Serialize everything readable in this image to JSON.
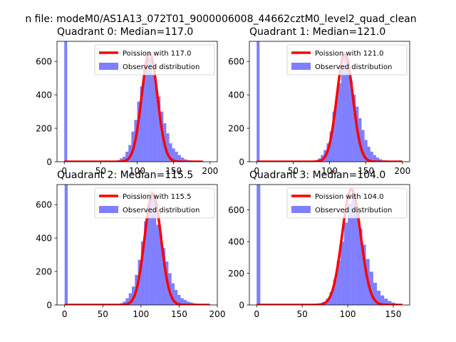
{
  "figure": {
    "suptitle": "n file: modeM0/AS1A13_072T01_9000006008_44662cztM0_level2_quad_clean"
  },
  "colors": {
    "hist": "#0000ff",
    "hist_alpha": 0.5,
    "poisson": "#ff0000",
    "axes": "#000000"
  },
  "chart_data": [
    {
      "type": "bar",
      "title": "Quadrant 0: Median=117.0",
      "xlim": [
        -10,
        210
      ],
      "ylim": [
        0,
        720
      ],
      "xticks": [
        0,
        50,
        100,
        150,
        200
      ],
      "yticks": [
        0,
        200,
        400,
        600
      ],
      "median": 117.0,
      "legend": {
        "placement": "upper right",
        "entries": [
          "Poission with 117.0",
          "Observed distribution"
        ]
      },
      "series": [
        {
          "name": "Observed distribution",
          "kind": "histogram",
          "bin_width": 4,
          "bin_starts": [
            0,
            72,
            76,
            80,
            84,
            88,
            92,
            96,
            100,
            104,
            108,
            112,
            116,
            120,
            124,
            128,
            132,
            136,
            140,
            144,
            148,
            152,
            156,
            160,
            164,
            168,
            172,
            176,
            180,
            184,
            188
          ],
          "counts": [
            720,
            10,
            20,
            30,
            60,
            100,
            180,
            250,
            360,
            450,
            580,
            640,
            620,
            520,
            460,
            390,
            300,
            230,
            170,
            110,
            80,
            60,
            40,
            25,
            15,
            10,
            8,
            6,
            5,
            4,
            3
          ]
        },
        {
          "name": "Poission with 117.0",
          "kind": "line",
          "mean": 117.0,
          "peak": 650,
          "x_range": [
            0,
            190
          ]
        }
      ]
    },
    {
      "type": "bar",
      "title": "Quadrant 1: Median=121.0",
      "xlim": [
        -10,
        210
      ],
      "ylim": [
        0,
        720
      ],
      "xticks": [
        0,
        50,
        100,
        150,
        200
      ],
      "yticks": [
        0,
        200,
        400,
        600
      ],
      "median": 121.0,
      "legend": {
        "placement": "upper right",
        "entries": [
          "Poission with 121.0",
          "Observed distribution"
        ]
      },
      "series": [
        {
          "name": "Observed distribution",
          "kind": "histogram",
          "bin_width": 4,
          "bin_starts": [
            0,
            80,
            84,
            88,
            92,
            96,
            100,
            104,
            108,
            112,
            116,
            120,
            124,
            128,
            132,
            136,
            140,
            144,
            148,
            152,
            156,
            160,
            164,
            168,
            172,
            176,
            180,
            184,
            188,
            192,
            196
          ],
          "counts": [
            720,
            10,
            20,
            40,
            70,
            110,
            180,
            300,
            390,
            470,
            570,
            650,
            610,
            480,
            400,
            330,
            260,
            190,
            130,
            90,
            60,
            40,
            25,
            15,
            10,
            8,
            6,
            5,
            4,
            3,
            2
          ]
        },
        {
          "name": "Poission with 121.0",
          "kind": "line",
          "mean": 121.0,
          "peak": 645,
          "x_range": [
            0,
            200
          ]
        }
      ]
    },
    {
      "type": "bar",
      "title": "Quadrant 2: Median=115.5",
      "xlim": [
        -10,
        200
      ],
      "ylim": [
        0,
        720
      ],
      "xticks": [
        0,
        50,
        100,
        150,
        200
      ],
      "yticks": [
        0,
        200,
        400,
        600
      ],
      "median": 115.5,
      "legend": {
        "placement": "upper right",
        "entries": [
          "Poission with 115.5",
          "Observed distribution"
        ]
      },
      "series": [
        {
          "name": "Observed distribution",
          "kind": "histogram",
          "bin_width": 4,
          "bin_starts": [
            0,
            72,
            76,
            80,
            84,
            88,
            92,
            96,
            100,
            104,
            108,
            112,
            116,
            120,
            124,
            128,
            132,
            136,
            140,
            144,
            148,
            152,
            156,
            160,
            164,
            168,
            172,
            176,
            180,
            184,
            188
          ],
          "counts": [
            720,
            10,
            20,
            40,
            70,
            110,
            180,
            270,
            380,
            500,
            600,
            680,
            650,
            480,
            420,
            340,
            260,
            190,
            130,
            90,
            60,
            40,
            30,
            20,
            15,
            10,
            8,
            6,
            5,
            4,
            3
          ]
        },
        {
          "name": "Poission with 115.5",
          "kind": "line",
          "mean": 115.5,
          "peak": 665,
          "x_range": [
            0,
            190
          ]
        }
      ]
    },
    {
      "type": "bar",
      "title": "Quadrant 3: Median=104.0",
      "xlim": [
        -8,
        168
      ],
      "ylim": [
        0,
        760
      ],
      "xticks": [
        0,
        50,
        100,
        150
      ],
      "yticks": [
        0,
        200,
        400,
        600
      ],
      "median": 104.0,
      "legend": {
        "placement": "upper right",
        "entries": [
          "Poission with 104.0",
          "Observed distribution"
        ]
      },
      "series": [
        {
          "name": "Observed distribution",
          "kind": "histogram",
          "bin_width": 4,
          "bin_starts": [
            0,
            64,
            68,
            72,
            76,
            80,
            84,
            88,
            92,
            96,
            100,
            104,
            108,
            112,
            116,
            120,
            124,
            128,
            132,
            136,
            140,
            144,
            148,
            152,
            156
          ],
          "counts": [
            760,
            5,
            10,
            20,
            40,
            80,
            160,
            280,
            400,
            520,
            640,
            700,
            600,
            480,
            380,
            290,
            210,
            140,
            90,
            60,
            40,
            25,
            15,
            8,
            5
          ]
        },
        {
          "name": "Poission with 104.0",
          "kind": "line",
          "mean": 104.0,
          "peak": 730,
          "x_range": [
            0,
            160
          ]
        }
      ]
    }
  ]
}
